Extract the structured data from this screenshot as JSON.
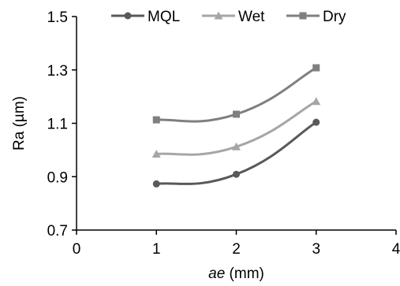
{
  "chart_data": {
    "type": "line",
    "xlabel_italic": "ae",
    "xlabel_unit": " (mm)",
    "ylabel": "Ra (µm)",
    "xlim": [
      0,
      4
    ],
    "ylim": [
      0.7,
      1.5
    ],
    "xticks": [
      0,
      1,
      2,
      3,
      4
    ],
    "yticks": [
      0.7,
      0.9,
      1.1,
      1.3,
      1.5
    ],
    "ytick_labels": [
      "0.7",
      "0.9",
      "1.1",
      "1.3",
      "1.5"
    ],
    "xtick_labels": [
      "0",
      "1",
      "2",
      "3",
      "4"
    ],
    "grid": false,
    "smooth": true,
    "legend": "top-center",
    "x": [
      1,
      2,
      3
    ],
    "series": [
      {
        "name": "MQL",
        "values": [
          0.873,
          0.909,
          1.104
        ],
        "color": "#595959",
        "marker": "circle"
      },
      {
        "name": "Wet",
        "values": [
          0.985,
          1.012,
          1.182
        ],
        "color": "#a6a6a6",
        "marker": "triangle"
      },
      {
        "name": "Dry",
        "values": [
          1.113,
          1.134,
          1.308
        ],
        "color": "#7f7f7f",
        "marker": "square"
      }
    ]
  }
}
